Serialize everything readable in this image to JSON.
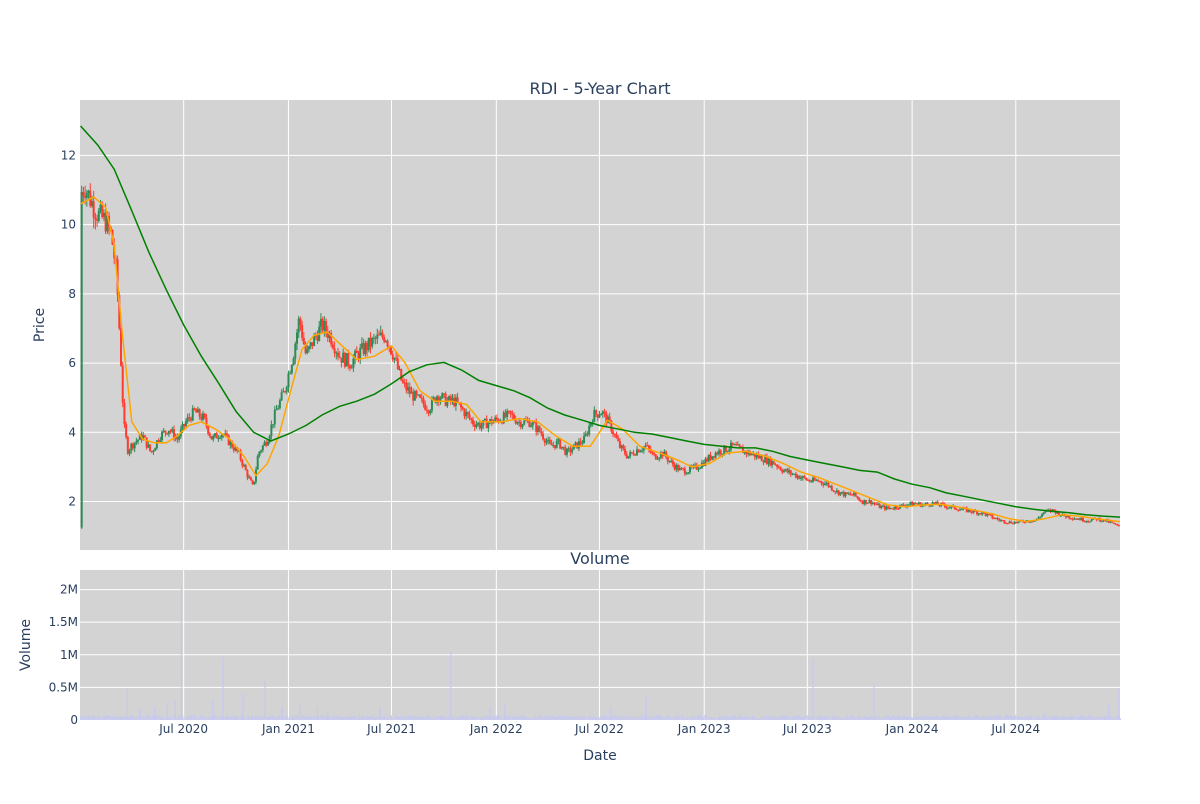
{
  "chart_data": [
    {
      "type": "candlestick",
      "title": "RDI - 5-Year Chart",
      "ylabel": "Price",
      "ylim": [
        0.6,
        13.6
      ],
      "y_ticks": [
        2,
        4,
        6,
        8,
        10,
        12
      ],
      "grid": true,
      "x_range": [
        "2020-01-01",
        "2024-12-31"
      ],
      "colors": {
        "up": "#2e8b57",
        "down": "#ff3b30",
        "ma_short": "#ffa500",
        "ma_long": "#008000",
        "plot_bg": "#d3d3d3"
      },
      "close_series": [
        [
          "2020-01-02",
          10.9
        ],
        [
          "2020-01-10",
          11.1
        ],
        [
          "2020-01-20",
          10.7
        ],
        [
          "2020-02-01",
          10.3
        ],
        [
          "2020-02-15",
          10.1
        ],
        [
          "2020-02-25",
          9.7
        ],
        [
          "2020-03-05",
          8.6
        ],
        [
          "2020-03-12",
          6.4
        ],
        [
          "2020-03-18",
          4.2
        ],
        [
          "2020-03-25",
          3.5
        ],
        [
          "2020-04-05",
          3.7
        ],
        [
          "2020-04-20",
          3.9
        ],
        [
          "2020-05-05",
          3.4
        ],
        [
          "2020-05-20",
          3.9
        ],
        [
          "2020-06-05",
          4.1
        ],
        [
          "2020-06-20",
          3.8
        ],
        [
          "2020-07-05",
          4.3
        ],
        [
          "2020-07-20",
          4.6
        ],
        [
          "2020-08-05",
          4.4
        ],
        [
          "2020-08-20",
          3.8
        ],
        [
          "2020-09-05",
          4.0
        ],
        [
          "2020-09-20",
          3.7
        ],
        [
          "2020-10-05",
          3.4
        ],
        [
          "2020-10-20",
          2.8
        ],
        [
          "2020-10-31",
          2.4
        ],
        [
          "2020-11-09",
          3.4
        ],
        [
          "2020-11-25",
          3.8
        ],
        [
          "2020-12-10",
          4.6
        ],
        [
          "2020-12-25",
          5.2
        ],
        [
          "2021-01-10",
          6.3
        ],
        [
          "2021-01-20",
          7.3
        ],
        [
          "2021-02-01",
          6.2
        ],
        [
          "2021-02-15",
          6.7
        ],
        [
          "2021-03-01",
          7.1
        ],
        [
          "2021-03-15",
          6.8
        ],
        [
          "2021-04-01",
          6.2
        ],
        [
          "2021-04-20",
          6.0
        ],
        [
          "2021-05-05",
          6.3
        ],
        [
          "2021-05-20",
          6.5
        ],
        [
          "2021-06-05",
          6.7
        ],
        [
          "2021-06-20",
          6.8
        ],
        [
          "2021-07-05",
          6.2
        ],
        [
          "2021-07-20",
          5.4
        ],
        [
          "2021-08-05",
          5.1
        ],
        [
          "2021-08-20",
          4.9
        ],
        [
          "2021-09-05",
          4.7
        ],
        [
          "2021-09-20",
          5.1
        ],
        [
          "2021-10-05",
          4.9
        ],
        [
          "2021-10-20",
          4.9
        ],
        [
          "2021-11-05",
          4.6
        ],
        [
          "2021-11-20",
          4.3
        ],
        [
          "2021-12-05",
          4.2
        ],
        [
          "2021-12-20",
          4.3
        ],
        [
          "2022-01-10",
          4.4
        ],
        [
          "2022-01-25",
          4.5
        ],
        [
          "2022-02-10",
          4.3
        ],
        [
          "2022-03-01",
          4.3
        ],
        [
          "2022-03-20",
          4.0
        ],
        [
          "2022-04-05",
          3.6
        ],
        [
          "2022-04-20",
          3.7
        ],
        [
          "2022-05-05",
          3.4
        ],
        [
          "2022-05-20",
          3.6
        ],
        [
          "2022-06-05",
          3.8
        ],
        [
          "2022-06-20",
          4.5
        ],
        [
          "2022-07-05",
          4.6
        ],
        [
          "2022-07-20",
          4.2
        ],
        [
          "2022-08-05",
          3.6
        ],
        [
          "2022-08-20",
          3.3
        ],
        [
          "2022-09-05",
          3.5
        ],
        [
          "2022-09-20",
          3.6
        ],
        [
          "2022-10-05",
          3.3
        ],
        [
          "2022-10-20",
          3.4
        ],
        [
          "2022-11-05",
          3.1
        ],
        [
          "2022-11-20",
          2.9
        ],
        [
          "2022-12-05",
          2.9
        ],
        [
          "2022-12-20",
          3.0
        ],
        [
          "2023-01-05",
          3.2
        ],
        [
          "2023-01-20",
          3.4
        ],
        [
          "2023-02-05",
          3.5
        ],
        [
          "2023-02-20",
          3.6
        ],
        [
          "2023-03-05",
          3.5
        ],
        [
          "2023-03-20",
          3.4
        ],
        [
          "2023-04-05",
          3.3
        ],
        [
          "2023-04-20",
          3.2
        ],
        [
          "2023-05-05",
          3.1
        ],
        [
          "2023-05-20",
          2.9
        ],
        [
          "2023-06-05",
          2.8
        ],
        [
          "2023-06-20",
          2.7
        ],
        [
          "2023-07-05",
          2.6
        ],
        [
          "2023-07-20",
          2.6
        ],
        [
          "2023-08-05",
          2.5
        ],
        [
          "2023-08-20",
          2.3
        ],
        [
          "2023-09-05",
          2.2
        ],
        [
          "2023-09-20",
          2.2
        ],
        [
          "2023-10-05",
          2.0
        ],
        [
          "2023-10-20",
          2.0
        ],
        [
          "2023-11-05",
          1.85
        ],
        [
          "2023-11-20",
          1.8
        ],
        [
          "2023-12-05",
          1.85
        ],
        [
          "2023-12-20",
          1.9
        ],
        [
          "2024-01-05",
          1.95
        ],
        [
          "2024-01-20",
          1.9
        ],
        [
          "2024-02-05",
          1.95
        ],
        [
          "2024-02-20",
          1.9
        ],
        [
          "2024-03-05",
          1.85
        ],
        [
          "2024-03-20",
          1.8
        ],
        [
          "2024-04-05",
          1.75
        ],
        [
          "2024-04-20",
          1.7
        ],
        [
          "2024-05-05",
          1.65
        ],
        [
          "2024-05-20",
          1.55
        ],
        [
          "2024-06-05",
          1.45
        ],
        [
          "2024-06-20",
          1.4
        ],
        [
          "2024-07-05",
          1.4
        ],
        [
          "2024-07-20",
          1.45
        ],
        [
          "2024-08-05",
          1.45
        ],
        [
          "2024-08-20",
          1.7
        ],
        [
          "2024-09-05",
          1.75
        ],
        [
          "2024-09-20",
          1.6
        ],
        [
          "2024-10-05",
          1.55
        ],
        [
          "2024-10-20",
          1.5
        ],
        [
          "2024-11-05",
          1.45
        ],
        [
          "2024-11-20",
          1.5
        ],
        [
          "2024-12-05",
          1.45
        ],
        [
          "2024-12-20",
          1.35
        ],
        [
          "2024-12-31",
          1.25
        ]
      ],
      "ma_short_series": [
        [
          "2020-01-02",
          10.6
        ],
        [
          "2020-01-25",
          10.8
        ],
        [
          "2020-02-15",
          10.5
        ],
        [
          "2020-03-01",
          9.4
        ],
        [
          "2020-03-15",
          6.9
        ],
        [
          "2020-04-01",
          4.3
        ],
        [
          "2020-04-20",
          3.8
        ],
        [
          "2020-05-10",
          3.7
        ],
        [
          "2020-06-01",
          3.7
        ],
        [
          "2020-06-20",
          3.9
        ],
        [
          "2020-07-10",
          4.2
        ],
        [
          "2020-08-01",
          4.3
        ],
        [
          "2020-08-25",
          4.1
        ],
        [
          "2020-09-20",
          3.8
        ],
        [
          "2020-10-15",
          3.3
        ],
        [
          "2020-11-05",
          2.75
        ],
        [
          "2020-11-25",
          3.1
        ],
        [
          "2020-12-15",
          3.9
        ],
        [
          "2021-01-05",
          5.2
        ],
        [
          "2021-01-25",
          6.4
        ],
        [
          "2021-02-15",
          6.8
        ],
        [
          "2021-03-10",
          6.9
        ],
        [
          "2021-04-05",
          6.5
        ],
        [
          "2021-05-01",
          6.1
        ],
        [
          "2021-06-01",
          6.2
        ],
        [
          "2021-07-01",
          6.5
        ],
        [
          "2021-07-25",
          6.0
        ],
        [
          "2021-08-20",
          5.2
        ],
        [
          "2021-09-15",
          4.9
        ],
        [
          "2021-10-15",
          4.9
        ],
        [
          "2021-11-10",
          4.8
        ],
        [
          "2021-12-05",
          4.3
        ],
        [
          "2022-01-10",
          4.3
        ],
        [
          "2022-02-10",
          4.4
        ],
        [
          "2022-03-15",
          4.3
        ],
        [
          "2022-04-15",
          3.9
        ],
        [
          "2022-05-15",
          3.6
        ],
        [
          "2022-06-15",
          3.6
        ],
        [
          "2022-07-15",
          4.35
        ],
        [
          "2022-08-10",
          4.1
        ],
        [
          "2022-09-10",
          3.6
        ],
        [
          "2022-10-15",
          3.4
        ],
        [
          "2022-11-15",
          3.2
        ],
        [
          "2022-12-10",
          3.0
        ],
        [
          "2023-01-10",
          3.1
        ],
        [
          "2023-02-10",
          3.4
        ],
        [
          "2023-03-15",
          3.45
        ],
        [
          "2023-04-20",
          3.3
        ],
        [
          "2023-05-20",
          3.1
        ],
        [
          "2023-06-20",
          2.85
        ],
        [
          "2023-07-20",
          2.7
        ],
        [
          "2023-08-20",
          2.5
        ],
        [
          "2023-09-20",
          2.3
        ],
        [
          "2023-10-20",
          2.1
        ],
        [
          "2023-11-20",
          1.9
        ],
        [
          "2023-12-20",
          1.85
        ],
        [
          "2024-01-20",
          1.9
        ],
        [
          "2024-02-20",
          1.92
        ],
        [
          "2024-03-20",
          1.85
        ],
        [
          "2024-04-20",
          1.75
        ],
        [
          "2024-05-20",
          1.65
        ],
        [
          "2024-06-20",
          1.5
        ],
        [
          "2024-07-20",
          1.42
        ],
        [
          "2024-08-20",
          1.5
        ],
        [
          "2024-09-20",
          1.62
        ],
        [
          "2024-10-20",
          1.58
        ],
        [
          "2024-11-20",
          1.5
        ],
        [
          "2024-12-31",
          1.42
        ]
      ],
      "ma_long_series": [
        [
          "2020-01-02",
          12.85
        ],
        [
          "2020-02-01",
          12.3
        ],
        [
          "2020-03-01",
          11.6
        ],
        [
          "2020-04-01",
          10.4
        ],
        [
          "2020-05-01",
          9.2
        ],
        [
          "2020-06-01",
          8.1
        ],
        [
          "2020-07-01",
          7.1
        ],
        [
          "2020-08-01",
          6.2
        ],
        [
          "2020-09-01",
          5.4
        ],
        [
          "2020-10-01",
          4.6
        ],
        [
          "2020-11-01",
          4.0
        ],
        [
          "2020-12-01",
          3.75
        ],
        [
          "2021-01-01",
          3.95
        ],
        [
          "2021-02-01",
          4.2
        ],
        [
          "2021-03-01",
          4.5
        ],
        [
          "2021-04-01",
          4.75
        ],
        [
          "2021-05-01",
          4.9
        ],
        [
          "2021-06-01",
          5.1
        ],
        [
          "2021-07-01",
          5.4
        ],
        [
          "2021-08-01",
          5.75
        ],
        [
          "2021-09-01",
          5.95
        ],
        [
          "2021-10-01",
          6.02
        ],
        [
          "2021-11-01",
          5.8
        ],
        [
          "2021-12-01",
          5.5
        ],
        [
          "2022-01-01",
          5.35
        ],
        [
          "2022-02-01",
          5.2
        ],
        [
          "2022-03-01",
          5.0
        ],
        [
          "2022-04-01",
          4.7
        ],
        [
          "2022-05-01",
          4.5
        ],
        [
          "2022-06-01",
          4.35
        ],
        [
          "2022-07-01",
          4.2
        ],
        [
          "2022-08-01",
          4.1
        ],
        [
          "2022-09-01",
          4.0
        ],
        [
          "2022-10-01",
          3.95
        ],
        [
          "2022-11-01",
          3.85
        ],
        [
          "2022-12-01",
          3.75
        ],
        [
          "2023-01-01",
          3.65
        ],
        [
          "2023-02-01",
          3.6
        ],
        [
          "2023-03-01",
          3.55
        ],
        [
          "2023-04-01",
          3.55
        ],
        [
          "2023-05-01",
          3.45
        ],
        [
          "2023-06-01",
          3.3
        ],
        [
          "2023-07-01",
          3.2
        ],
        [
          "2023-08-01",
          3.1
        ],
        [
          "2023-09-01",
          3.0
        ],
        [
          "2023-10-01",
          2.9
        ],
        [
          "2023-11-01",
          2.85
        ],
        [
          "2023-12-01",
          2.65
        ],
        [
          "2024-01-01",
          2.5
        ],
        [
          "2024-02-01",
          2.4
        ],
        [
          "2024-03-01",
          2.25
        ],
        [
          "2024-04-01",
          2.15
        ],
        [
          "2024-05-01",
          2.05
        ],
        [
          "2024-06-01",
          1.95
        ],
        [
          "2024-07-01",
          1.85
        ],
        [
          "2024-08-01",
          1.78
        ],
        [
          "2024-09-01",
          1.72
        ],
        [
          "2024-10-01",
          1.68
        ],
        [
          "2024-11-01",
          1.62
        ],
        [
          "2024-12-01",
          1.58
        ],
        [
          "2024-12-31",
          1.55
        ]
      ]
    },
    {
      "type": "bar",
      "title": "Volume",
      "xlabel": "Date",
      "ylabel": "Volume",
      "ylim": [
        0,
        2300000
      ],
      "y_ticks": [
        0,
        500000,
        1000000,
        1500000,
        2000000
      ],
      "y_tick_labels": [
        "0",
        "0.5M",
        "1M",
        "1.5M",
        "2M"
      ],
      "x_ticks": [
        "2020-07-01",
        "2021-01-01",
        "2021-07-01",
        "2022-01-01",
        "2022-07-01",
        "2023-01-01",
        "2023-07-01",
        "2024-01-01",
        "2024-07-01"
      ],
      "x_tick_labels": [
        "Jul 2020",
        "Jan 2021",
        "Jul 2021",
        "Jan 2022",
        "Jul 2022",
        "Jan 2023",
        "Jul 2023",
        "Jan 2024",
        "Jul 2024"
      ],
      "grid": true,
      "colors": {
        "bar": "#c6c8f0",
        "plot_bg": "#d3d3d3"
      },
      "baseline": 50000,
      "spikes": [
        [
          "2020-03-23",
          480000
        ],
        [
          "2020-04-15",
          180000
        ],
        [
          "2020-05-10",
          200000
        ],
        [
          "2020-06-01",
          250000
        ],
        [
          "2020-06-15",
          300000
        ],
        [
          "2020-06-26",
          2050000
        ],
        [
          "2020-08-20",
          300000
        ],
        [
          "2020-09-07",
          960000
        ],
        [
          "2020-10-12",
          400000
        ],
        [
          "2020-11-20",
          600000
        ],
        [
          "2020-12-20",
          200000
        ],
        [
          "2021-01-20",
          250000
        ],
        [
          "2021-02-20",
          200000
        ],
        [
          "2021-03-10",
          150000
        ],
        [
          "2021-06-10",
          200000
        ],
        [
          "2021-10-12",
          1050000
        ],
        [
          "2021-12-20",
          200000
        ],
        [
          "2022-01-15",
          250000
        ],
        [
          "2022-07-20",
          200000
        ],
        [
          "2022-09-20",
          350000
        ],
        [
          "2023-07-10",
          950000
        ],
        [
          "2023-10-25",
          560000
        ],
        [
          "2024-08-20",
          100000
        ],
        [
          "2024-12-10",
          250000
        ],
        [
          "2024-12-28",
          480000
        ]
      ]
    }
  ]
}
